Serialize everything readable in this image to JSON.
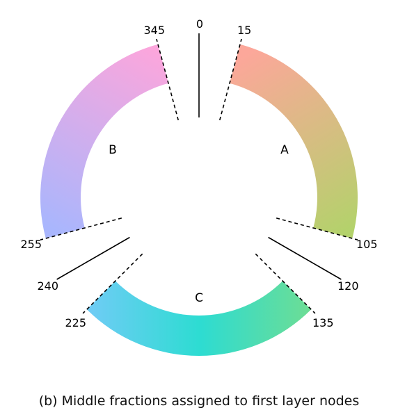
{
  "caption": "(b) Middle fractions assigned to first layer nodes",
  "nodes": [
    {
      "label": "A",
      "start_deg": 15,
      "end_deg": 105,
      "color_start": "#fca79a",
      "color_end": "#b3d26b"
    },
    {
      "label": "B",
      "start_deg": 255,
      "end_deg": 345,
      "color_start": "#a9b6fd",
      "color_end": "#fca6dc"
    },
    {
      "label": "C",
      "start_deg": 135,
      "end_deg": 225,
      "color_start": "#6cdd95",
      "color_mid": "#2ddcd2",
      "color_end": "#6fccf5"
    }
  ],
  "boundaries": [
    {
      "deg": 0,
      "label": "0",
      "style": "solid"
    },
    {
      "deg": 15,
      "label": "15",
      "style": "dashed"
    },
    {
      "deg": 105,
      "label": "105",
      "style": "dashed"
    },
    {
      "deg": 120,
      "label": "120",
      "style": "solid"
    },
    {
      "deg": 135,
      "label": "135",
      "style": "dashed"
    },
    {
      "deg": 225,
      "label": "225",
      "style": "dashed"
    },
    {
      "deg": 240,
      "label": "240",
      "style": "solid"
    },
    {
      "deg": 255,
      "label": "255",
      "style": "dashed"
    },
    {
      "deg": 345,
      "label": "345",
      "style": "dashed"
    }
  ]
}
